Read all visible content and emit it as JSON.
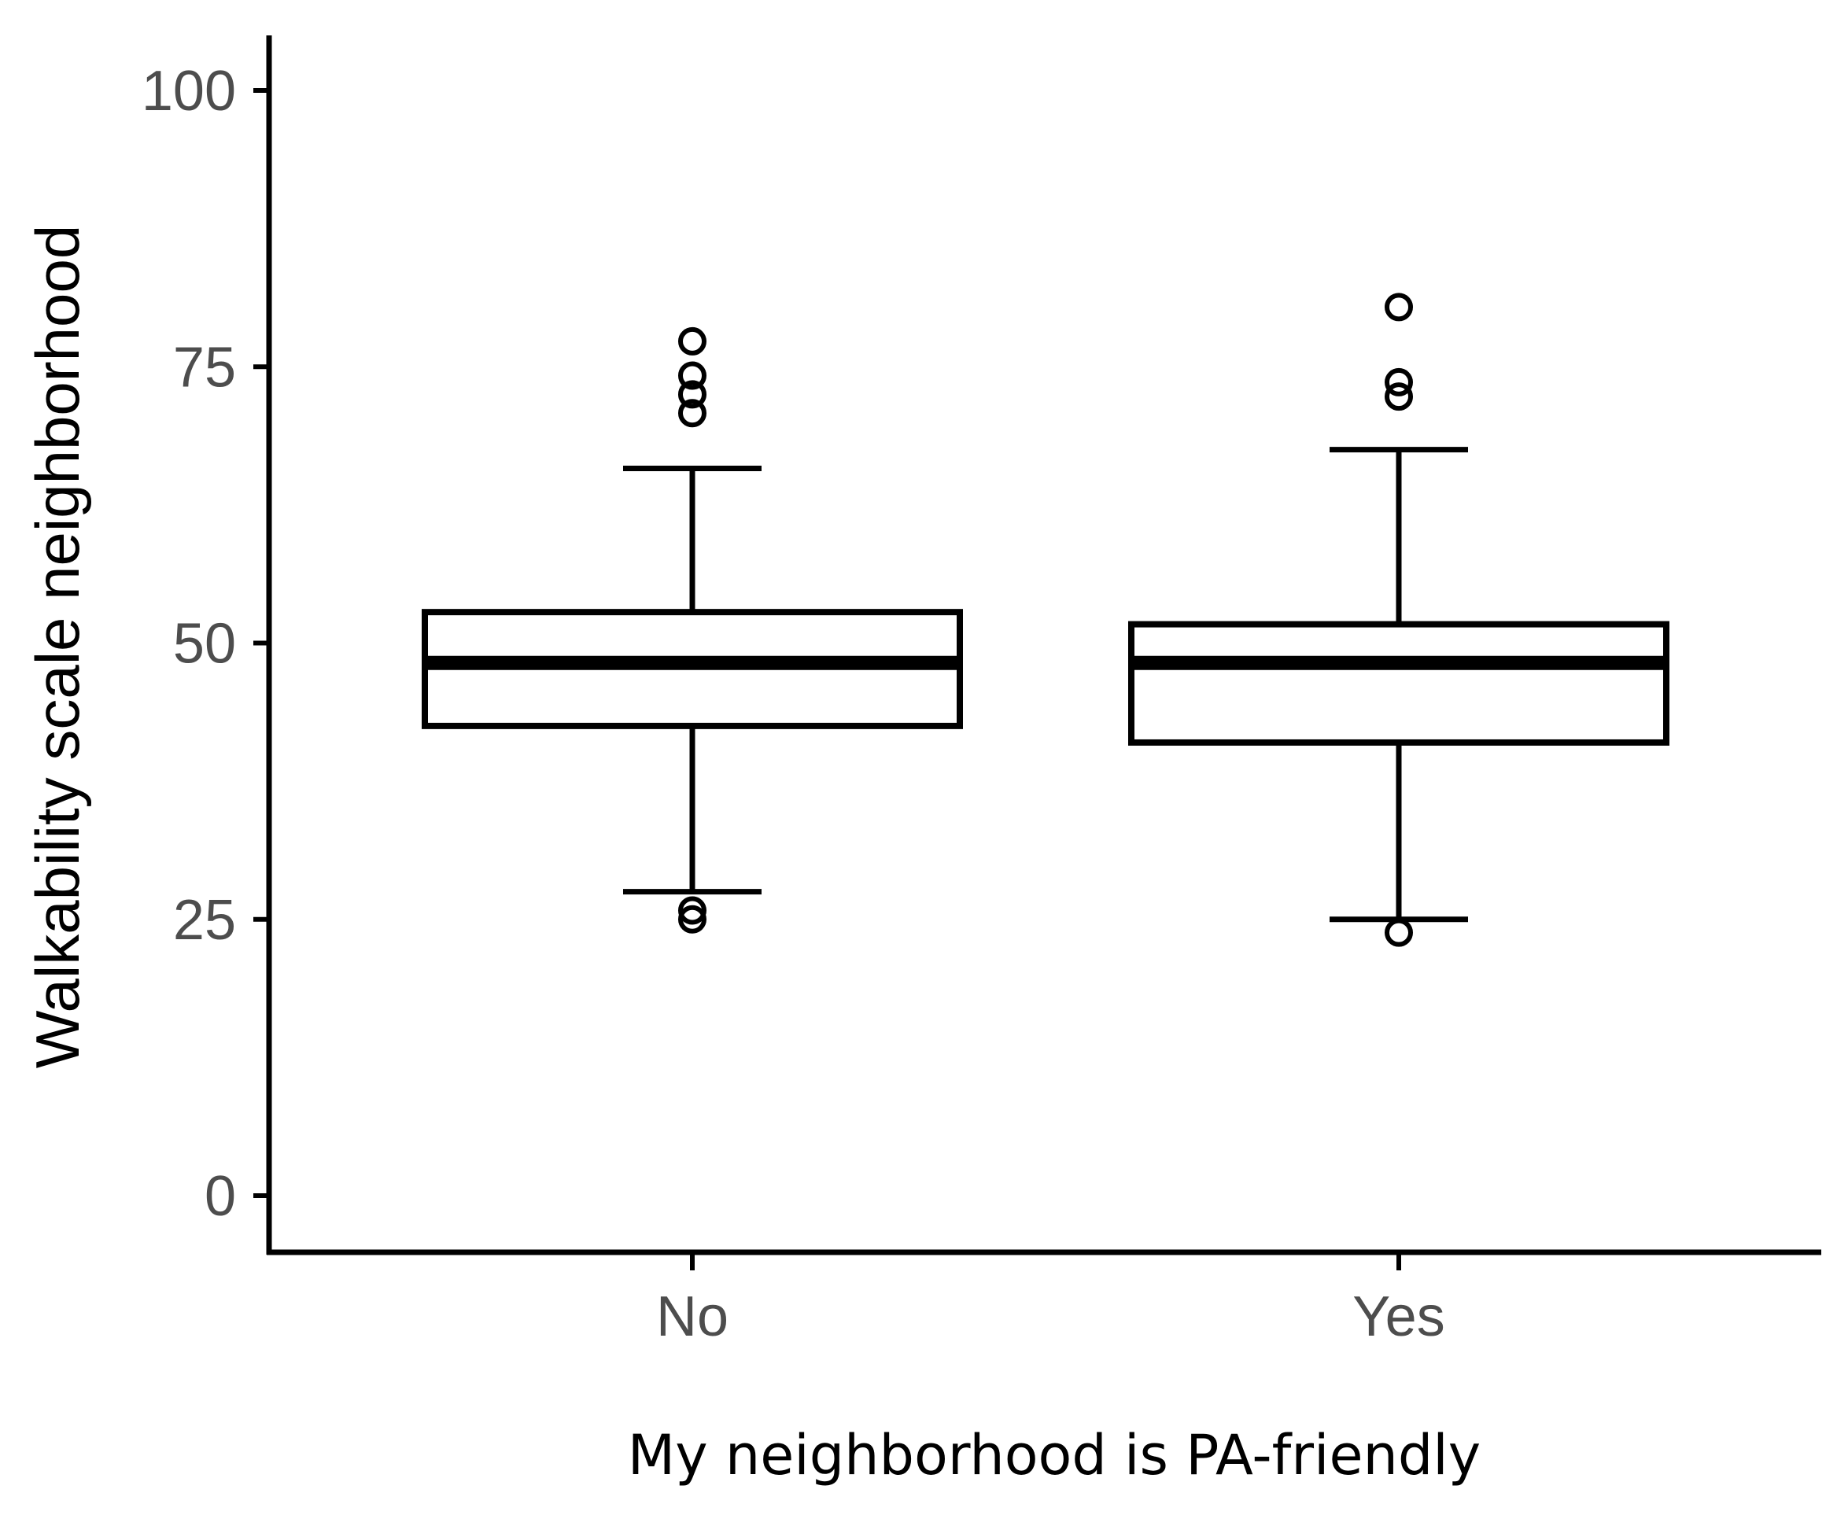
{
  "chart_data": {
    "type": "boxplot",
    "xlabel": "My neighborhood is PA-friendly",
    "ylabel": "Walkability scale neighborhood",
    "ylim": [
      -5,
      105
    ],
    "yticks": [
      0,
      25,
      50,
      75,
      100
    ],
    "categories": [
      "No",
      "Yes"
    ],
    "boxes": [
      {
        "category": "No",
        "whisker_low": 27.5,
        "q1": 42.5,
        "median": 48.2,
        "q3": 52.8,
        "whisker_high": 65.8,
        "outliers": [
          25.0,
          25.8,
          70.8,
          72.5,
          74.2,
          77.3
        ]
      },
      {
        "category": "Yes",
        "whisker_low": 25.0,
        "q1": 41.0,
        "median": 48.2,
        "q3": 51.7,
        "whisker_high": 67.5,
        "outliers": [
          23.8,
          72.3,
          73.6,
          80.4
        ]
      }
    ],
    "grid": false,
    "legend": "none",
    "colors": {
      "box_stroke": "#000000",
      "box_fill": "#ffffff",
      "tick_text": "#4d4d4d",
      "axis": "#000000"
    }
  }
}
